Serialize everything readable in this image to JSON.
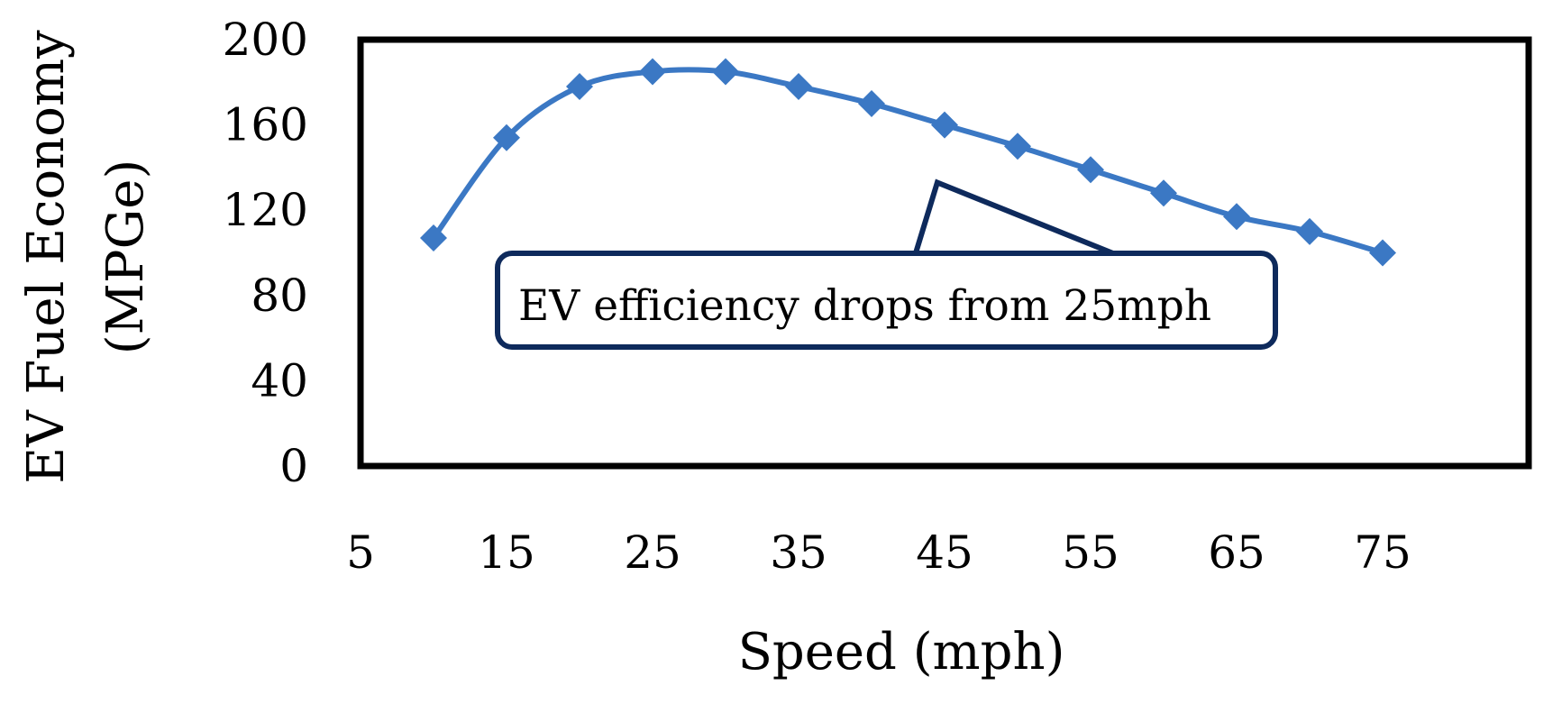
{
  "chart_data": {
    "type": "line",
    "xlabel": "Speed (mph)",
    "ylabel": "EV Fuel Economy (MPGe)",
    "ylabel_lines": [
      "EV Fuel Economy",
      "(MPGe)"
    ],
    "xlim": [
      5,
      85
    ],
    "ylim": [
      0,
      200
    ],
    "xticks": [
      5,
      15,
      25,
      35,
      45,
      55,
      65,
      75
    ],
    "yticks": [
      0,
      40,
      80,
      120,
      160,
      200
    ],
    "grid": false,
    "series": [
      {
        "x": [
          10,
          15,
          20,
          25,
          30,
          35,
          40,
          45,
          50,
          55,
          60,
          65,
          70,
          75
        ],
        "values": [
          107,
          154,
          178,
          185,
          185,
          178,
          170,
          160,
          150,
          139,
          128,
          117,
          110,
          100
        ],
        "color": "#3b78c4",
        "marker": "diamond",
        "smooth": true
      }
    ],
    "annotations": [
      {
        "text": "EV efficiency drops from 25mph",
        "pointer_x": 44.5,
        "pointer_y": 133,
        "color": "#0e2a5c"
      }
    ]
  }
}
